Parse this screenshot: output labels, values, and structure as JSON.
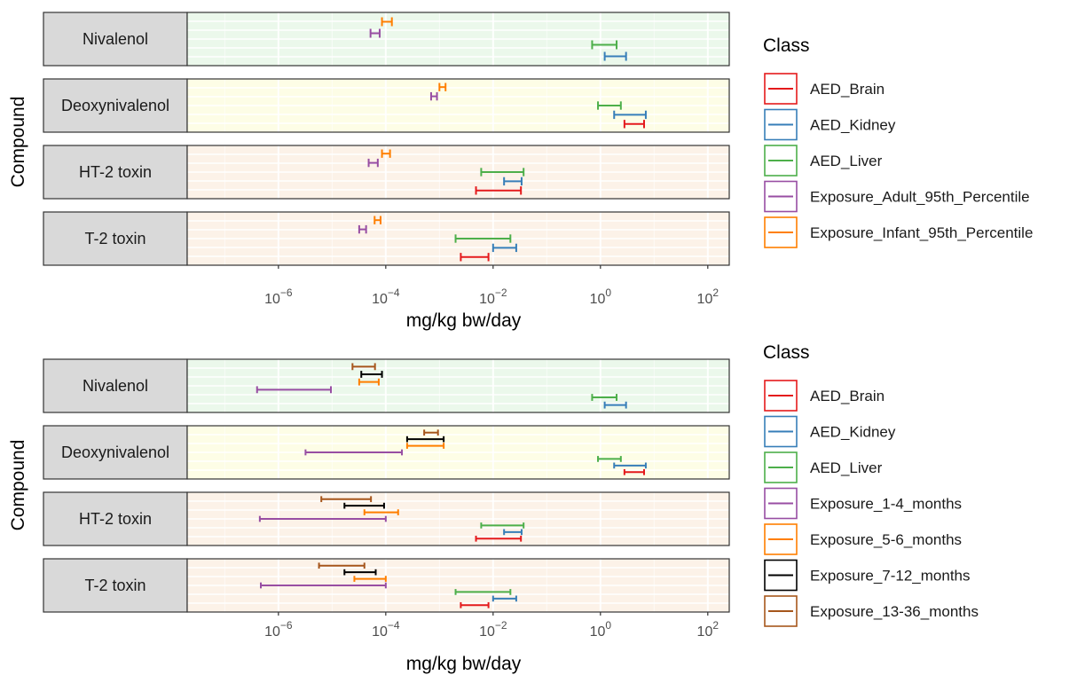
{
  "chart_data": [
    {
      "type": "errorbar",
      "xlabel": "mg/kg bw/day",
      "ylabel": "Compound",
      "x_scale": "log10",
      "xlim": [
        2e-08,
        250
      ],
      "x_ticks": [
        1e-06,
        0.0001,
        0.01,
        1,
        100
      ],
      "x_tick_labels": [
        {
          "base": "10",
          "exp": "−6"
        },
        {
          "base": "10",
          "exp": "−4"
        },
        {
          "base": "10",
          "exp": "−2"
        },
        {
          "base": "10",
          "exp": "0"
        },
        {
          "base": "10",
          "exp": "2"
        }
      ],
      "grid": true,
      "legend_position": "right",
      "legend_title": "Class",
      "classes": [
        {
          "name": "AED_Brain",
          "color": "#E41A1C"
        },
        {
          "name": "AED_Kidney",
          "color": "#377EB8"
        },
        {
          "name": "AED_Liver",
          "color": "#4DAF4A"
        },
        {
          "name": "Exposure_Adult_95th_Percentile",
          "color": "#984EA3"
        },
        {
          "name": "Exposure_Infant_95th_Percentile",
          "color": "#FF7F00"
        }
      ],
      "facets": [
        {
          "label": "Nivalenol",
          "background": "#EBF8EB",
          "bars": [
            {
              "class": "Exposure_Infant_95th_Percentile",
              "low": 8.5e-05,
              "high": 0.00013
            },
            {
              "class": "Exposure_Adult_95th_Percentile",
              "low": 5.2e-05,
              "high": 7.7e-05
            },
            {
              "class": "AED_Liver",
              "low": 0.7,
              "high": 2.0
            },
            {
              "class": "AED_Kidney",
              "low": 1.2,
              "high": 3.0
            }
          ]
        },
        {
          "label": "Deoxynivalenol",
          "background": "#FDFDE6",
          "bars": [
            {
              "class": "Exposure_Infant_95th_Percentile",
              "low": 0.001,
              "high": 0.0013
            },
            {
              "class": "Exposure_Adult_95th_Percentile",
              "low": 0.0007,
              "high": 0.0009
            },
            {
              "class": "AED_Liver",
              "low": 0.9,
              "high": 2.4
            },
            {
              "class": "AED_Kidney",
              "low": 1.8,
              "high": 7.0
            },
            {
              "class": "AED_Brain",
              "low": 2.8,
              "high": 6.5
            }
          ]
        },
        {
          "label": "HT-2 toxin",
          "background": "#FCF2E8",
          "bars": [
            {
              "class": "Exposure_Infant_95th_Percentile",
              "low": 8.5e-05,
              "high": 0.00012
            },
            {
              "class": "Exposure_Adult_95th_Percentile",
              "low": 4.8e-05,
              "high": 7.1e-05
            },
            {
              "class": "AED_Liver",
              "low": 0.006,
              "high": 0.037
            },
            {
              "class": "AED_Kidney",
              "low": 0.016,
              "high": 0.034
            },
            {
              "class": "AED_Brain",
              "low": 0.0048,
              "high": 0.033
            }
          ]
        },
        {
          "label": "T-2 toxin",
          "background": "#FCF2E8",
          "bars": [
            {
              "class": "Exposure_Infant_95th_Percentile",
              "low": 6.2e-05,
              "high": 8e-05
            },
            {
              "class": "Exposure_Adult_95th_Percentile",
              "low": 3.2e-05,
              "high": 4.3e-05
            },
            {
              "class": "AED_Liver",
              "low": 0.002,
              "high": 0.021
            },
            {
              "class": "AED_Kidney",
              "low": 0.01,
              "high": 0.027
            },
            {
              "class": "AED_Brain",
              "low": 0.0025,
              "high": 0.0082
            }
          ]
        }
      ]
    },
    {
      "type": "errorbar",
      "xlabel": "mg/kg bw/day",
      "ylabel": "Compound",
      "x_scale": "log10",
      "xlim": [
        2e-08,
        250
      ],
      "x_ticks": [
        1e-06,
        0.0001,
        0.01,
        1,
        100
      ],
      "x_tick_labels": [
        {
          "base": "10",
          "exp": "−6"
        },
        {
          "base": "10",
          "exp": "−4"
        },
        {
          "base": "10",
          "exp": "−2"
        },
        {
          "base": "10",
          "exp": "0"
        },
        {
          "base": "10",
          "exp": "2"
        }
      ],
      "grid": true,
      "legend_position": "right",
      "legend_title": "Class",
      "classes": [
        {
          "name": "AED_Brain",
          "color": "#E41A1C"
        },
        {
          "name": "AED_Kidney",
          "color": "#377EB8"
        },
        {
          "name": "AED_Liver",
          "color": "#4DAF4A"
        },
        {
          "name": "Exposure_1-4_months",
          "color": "#984EA3"
        },
        {
          "name": "Exposure_5-6_months",
          "color": "#FF7F00"
        },
        {
          "name": "Exposure_7-12_months",
          "color": "#000000"
        },
        {
          "name": "Exposure_13-36_months",
          "color": "#A6561C"
        }
      ],
      "facets": [
        {
          "label": "Nivalenol",
          "background": "#EBF8EB",
          "bars": [
            {
              "class": "Exposure_13-36_months",
              "low": 2.4e-05,
              "high": 6.3e-05
            },
            {
              "class": "Exposure_7-12_months",
              "low": 3.5e-05,
              "high": 8.5e-05
            },
            {
              "class": "Exposure_5-6_months",
              "low": 3.2e-05,
              "high": 7.4e-05
            },
            {
              "class": "Exposure_1-4_months",
              "low": 4e-07,
              "high": 9.5e-06
            },
            {
              "class": "AED_Liver",
              "low": 0.7,
              "high": 2.0
            },
            {
              "class": "AED_Kidney",
              "low": 1.2,
              "high": 3.0
            }
          ]
        },
        {
          "label": "Deoxynivalenol",
          "background": "#FDFDE6",
          "bars": [
            {
              "class": "Exposure_13-36_months",
              "low": 0.00052,
              "high": 0.00094
            },
            {
              "class": "Exposure_7-12_months",
              "low": 0.00025,
              "high": 0.0012
            },
            {
              "class": "Exposure_5-6_months",
              "low": 0.00025,
              "high": 0.0012
            },
            {
              "class": "Exposure_1-4_months",
              "low": 3.2e-06,
              "high": 0.0002
            },
            {
              "class": "AED_Liver",
              "low": 0.9,
              "high": 2.4
            },
            {
              "class": "AED_Kidney",
              "low": 1.8,
              "high": 7.0
            },
            {
              "class": "AED_Brain",
              "low": 2.8,
              "high": 6.5
            }
          ]
        },
        {
          "label": "HT-2 toxin",
          "background": "#FCF2E8",
          "bars": [
            {
              "class": "Exposure_13-36_months",
              "low": 6.3e-06,
              "high": 5.3e-05
            },
            {
              "class": "Exposure_7-12_months",
              "low": 1.7e-05,
              "high": 9.3e-05
            },
            {
              "class": "Exposure_5-6_months",
              "low": 4e-05,
              "high": 0.00017
            },
            {
              "class": "Exposure_1-4_months",
              "low": 4.5e-07,
              "high": 0.0001
            },
            {
              "class": "AED_Liver",
              "low": 0.006,
              "high": 0.037
            },
            {
              "class": "AED_Kidney",
              "low": 0.016,
              "high": 0.034
            },
            {
              "class": "AED_Brain",
              "low": 0.0048,
              "high": 0.033
            }
          ]
        },
        {
          "label": "T-2 toxin",
          "background": "#FCF2E8",
          "bars": [
            {
              "class": "Exposure_13-36_months",
              "low": 5.7e-06,
              "high": 4e-05
            },
            {
              "class": "Exposure_7-12_months",
              "low": 1.7e-05,
              "high": 6.5e-05
            },
            {
              "class": "Exposure_5-6_months",
              "low": 2.6e-05,
              "high": 0.0001
            },
            {
              "class": "Exposure_1-4_months",
              "low": 4.7e-07,
              "high": 0.0001
            },
            {
              "class": "AED_Liver",
              "low": 0.002,
              "high": 0.021
            },
            {
              "class": "AED_Kidney",
              "low": 0.01,
              "high": 0.027
            },
            {
              "class": "AED_Brain",
              "low": 0.0025,
              "high": 0.0082
            }
          ]
        }
      ]
    }
  ]
}
